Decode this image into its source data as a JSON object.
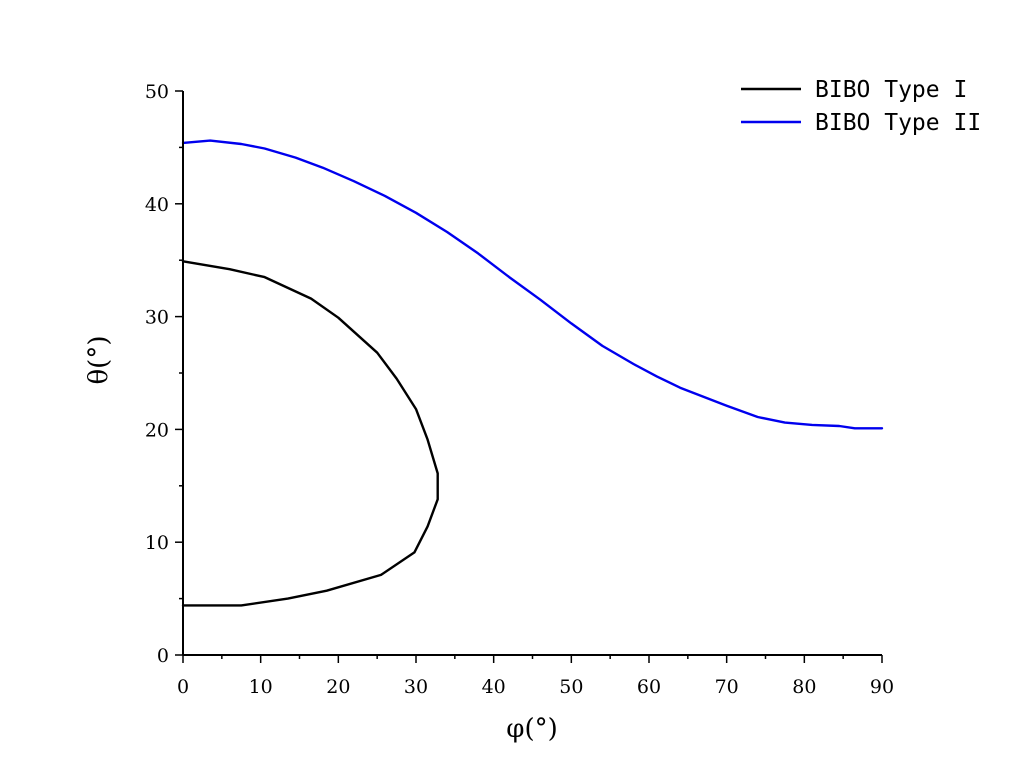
{
  "chart_data": {
    "type": "line",
    "title": "",
    "xlabel": "φ(°)",
    "ylabel": "θ(°)",
    "xlim": [
      0,
      90
    ],
    "ylim": [
      0,
      50
    ],
    "xticks": [
      0,
      10,
      20,
      30,
      40,
      50,
      60,
      70,
      80,
      90
    ],
    "yticks": [
      0,
      10,
      20,
      30,
      40,
      50
    ],
    "grid": false,
    "legend_position": "top-right",
    "series": [
      {
        "name": "BIBO Type I",
        "color": "#000000",
        "points": [
          [
            0,
            34.9
          ],
          [
            6,
            34.2
          ],
          [
            10.5,
            33.5
          ],
          [
            16.5,
            31.6
          ],
          [
            20,
            29.9
          ],
          [
            25,
            26.8
          ],
          [
            27.5,
            24.5
          ],
          [
            30,
            21.8
          ],
          [
            31.5,
            19.1
          ],
          [
            32.8,
            16.1
          ],
          [
            32.8,
            13.8
          ],
          [
            31.5,
            11.4
          ],
          [
            29.8,
            9.1
          ],
          [
            25.5,
            7.1
          ],
          [
            18.5,
            5.7
          ],
          [
            13.5,
            5.0
          ],
          [
            7.5,
            4.4
          ],
          [
            0,
            4.4
          ]
        ]
      },
      {
        "name": "BIBO Type II",
        "color": "#0000ee",
        "points": [
          [
            0,
            45.4
          ],
          [
            3.5,
            45.6
          ],
          [
            7.5,
            45.3
          ],
          [
            10.5,
            44.9
          ],
          [
            14.5,
            44.1
          ],
          [
            18,
            43.2
          ],
          [
            22,
            42.0
          ],
          [
            26,
            40.7
          ],
          [
            30,
            39.2
          ],
          [
            34,
            37.5
          ],
          [
            38,
            35.6
          ],
          [
            42,
            33.5
          ],
          [
            46,
            31.5
          ],
          [
            50,
            29.4
          ],
          [
            54,
            27.4
          ],
          [
            58,
            25.8
          ],
          [
            61,
            24.7
          ],
          [
            64,
            23.7
          ],
          [
            67,
            22.9
          ],
          [
            70,
            22.1
          ],
          [
            74,
            21.1
          ],
          [
            77.5,
            20.6
          ],
          [
            81,
            20.4
          ],
          [
            84.5,
            20.3
          ],
          [
            86.5,
            20.1
          ],
          [
            90,
            20.1
          ]
        ]
      }
    ]
  }
}
